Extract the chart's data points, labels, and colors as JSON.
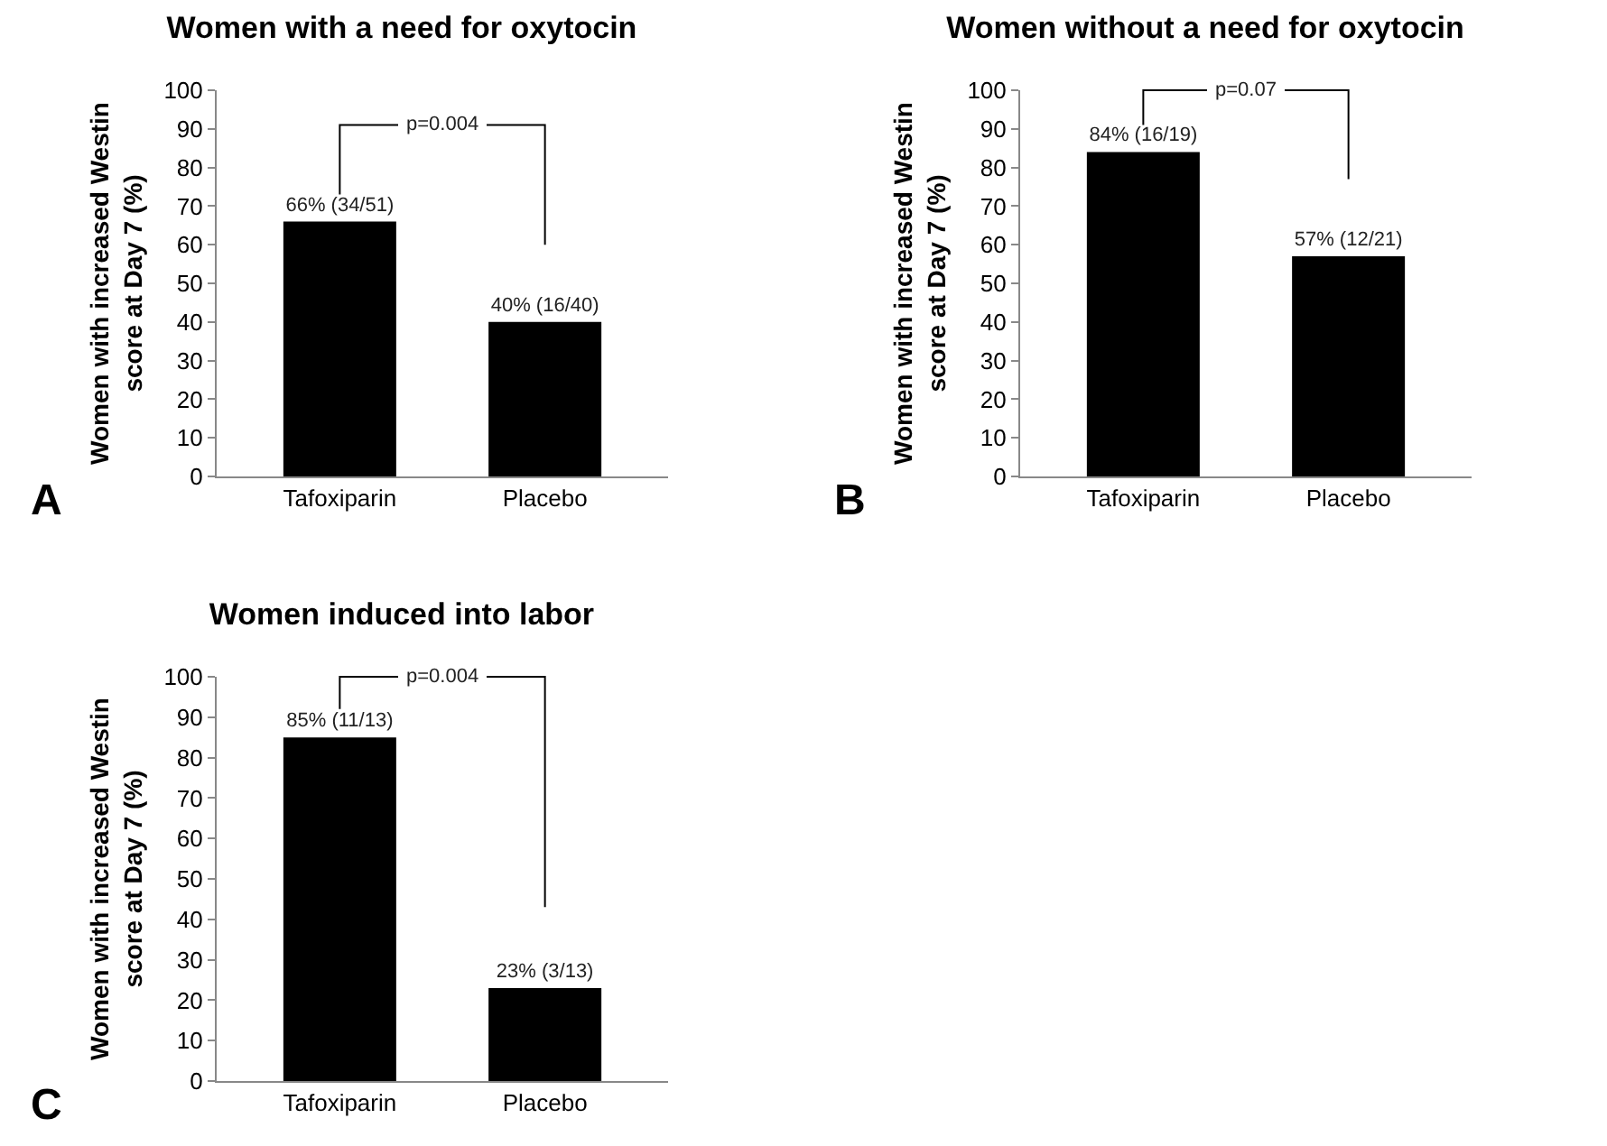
{
  "chart_data": [
    {
      "type": "bar",
      "title": "Women with a need for oxytocin",
      "ylabel": "Women with increased Westin score at Day 7 (%)",
      "categories": [
        "Tafoxiparin",
        "Placebo"
      ],
      "values": [
        66,
        40
      ],
      "value_labels": [
        "66% (34/51)",
        "40% (16/40)"
      ],
      "color": "#000000",
      "ylim": [
        0,
        100
      ],
      "yticks": [
        0,
        10,
        20,
        30,
        40,
        50,
        60,
        70,
        80,
        90,
        100
      ],
      "grid": false,
      "annotations": [
        "A",
        "p=0.004"
      ]
    },
    {
      "type": "bar",
      "title": "Women without a need for oxytocin",
      "ylabel": "Women with increased Westin score at Day 7 (%)",
      "categories": [
        "Tafoxiparin",
        "Placebo"
      ],
      "values": [
        84,
        57
      ],
      "value_labels": [
        "84% (16/19)",
        "57% (12/21)"
      ],
      "color": "#000000",
      "ylim": [
        0,
        100
      ],
      "yticks": [
        0,
        10,
        20,
        30,
        40,
        50,
        60,
        70,
        80,
        90,
        100
      ],
      "grid": false,
      "annotations": [
        "B",
        "p=0.07"
      ]
    },
    {
      "type": "bar",
      "title": "Women induced into labor",
      "ylabel": "Women with increased Westin score at Day 7 (%)",
      "categories": [
        "Tafoxiparin",
        "Placebo"
      ],
      "values": [
        85,
        23
      ],
      "value_labels": [
        "85% (11/13)",
        "23% (3/13)"
      ],
      "color": "#000000",
      "ylim": [
        0,
        100
      ],
      "yticks": [
        0,
        10,
        20,
        30,
        40,
        50,
        60,
        70,
        80,
        90,
        100
      ],
      "grid": false,
      "annotations": [
        "C",
        "p=0.004"
      ]
    }
  ]
}
